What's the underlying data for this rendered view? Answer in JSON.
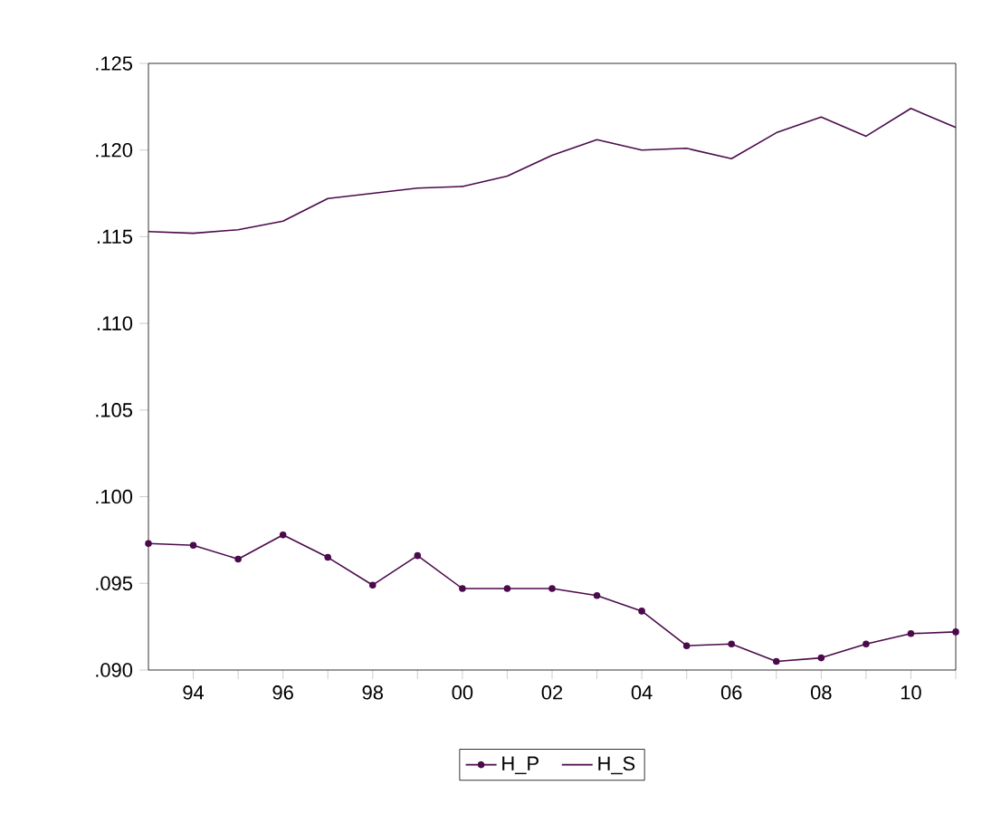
{
  "chart_data": {
    "type": "line",
    "x": [
      1993,
      1994,
      1995,
      1996,
      1997,
      1998,
      1999,
      2000,
      2001,
      2002,
      2003,
      2004,
      2005,
      2006,
      2007,
      2008,
      2009,
      2010,
      2011
    ],
    "series": [
      {
        "name": "H_P",
        "color": "#4b0a4b",
        "marker": "circle",
        "values": [
          0.0973,
          0.0972,
          0.0964,
          0.0978,
          0.0965,
          0.0949,
          0.0966,
          0.0947,
          0.0947,
          0.0947,
          0.0943,
          0.0934,
          0.0914,
          0.0915,
          0.0905,
          0.0907,
          0.0915,
          0.0921,
          0.0922
        ]
      },
      {
        "name": "H_S",
        "color": "#4b0a4b",
        "marker": "none",
        "values": [
          0.1153,
          0.1152,
          0.1154,
          0.1159,
          0.1172,
          0.1175,
          0.1178,
          0.1179,
          0.1185,
          0.1197,
          0.1206,
          0.12,
          0.1201,
          0.1195,
          0.121,
          0.1219,
          0.1208,
          0.1224,
          0.1213
        ]
      }
    ],
    "xlim": [
      1993,
      2011
    ],
    "xticks": [
      {
        "value": 1994,
        "label": "94"
      },
      {
        "value": 1995,
        "label": null
      },
      {
        "value": 1996,
        "label": "96"
      },
      {
        "value": 1997,
        "label": null
      },
      {
        "value": 1998,
        "label": "98"
      },
      {
        "value": 1999,
        "label": null
      },
      {
        "value": 2000,
        "label": "00"
      },
      {
        "value": 2001,
        "label": null
      },
      {
        "value": 2002,
        "label": "02"
      },
      {
        "value": 2003,
        "label": null
      },
      {
        "value": 2004,
        "label": "04"
      },
      {
        "value": 2005,
        "label": null
      },
      {
        "value": 2006,
        "label": "06"
      },
      {
        "value": 2007,
        "label": null
      },
      {
        "value": 2008,
        "label": "08"
      },
      {
        "value": 2009,
        "label": null
      },
      {
        "value": 2010,
        "label": "10"
      },
      {
        "value": 2011,
        "label": null
      }
    ],
    "ylim": [
      0.09,
      0.125
    ],
    "yticks": [
      {
        "value": 0.09,
        "label": ".090"
      },
      {
        "value": 0.095,
        "label": ".095"
      },
      {
        "value": 0.1,
        "label": ".100"
      },
      {
        "value": 0.105,
        "label": ".105"
      },
      {
        "value": 0.11,
        "label": ".110"
      },
      {
        "value": 0.115,
        "label": ".115"
      },
      {
        "value": 0.12,
        "label": ".120"
      },
      {
        "value": 0.125,
        "label": ".125"
      }
    ],
    "legend": "bottom",
    "line_style": "solid"
  }
}
